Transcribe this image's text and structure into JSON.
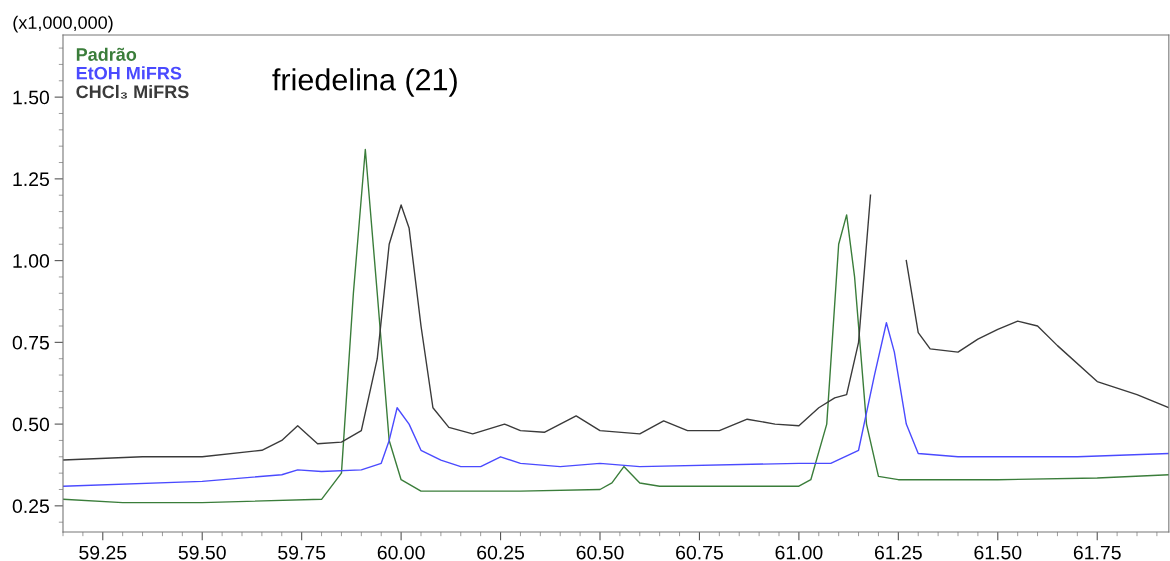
{
  "chart_data": {
    "type": "line",
    "ylabel": "(x1,000,000)",
    "annotations": [
      {
        "text": "friedelina (21)",
        "x": 59.91,
        "y": 1.34
      }
    ],
    "xlim": [
      59.15,
      61.93
    ],
    "xticks": [
      {
        "value": 59.25,
        "label": "59.25"
      },
      {
        "value": 59.5,
        "label": "59.50"
      },
      {
        "value": 59.75,
        "label": "59.75"
      },
      {
        "value": 60.0,
        "label": "60.00"
      },
      {
        "value": 60.25,
        "label": "60.25"
      },
      {
        "value": 60.5,
        "label": "60.50"
      },
      {
        "value": 60.75,
        "label": "60.75"
      },
      {
        "value": 61.0,
        "label": "61.00"
      },
      {
        "value": 61.25,
        "label": "61.25"
      },
      {
        "value": 61.5,
        "label": "61.50"
      },
      {
        "value": 61.75,
        "label": "61.75"
      }
    ],
    "ylim": [
      0.17,
      1.69
    ],
    "yticks": [
      0.25,
      {
        "value": 0.5,
        "label": "0.50"
      },
      0.75,
      {
        "value": 1.0,
        "label": "1.00"
      },
      1.25,
      {
        "value": 1.5,
        "label": "1.50"
      }
    ],
    "legend": "top left",
    "grid": false,
    "marker": "none",
    "line_style": "solid",
    "series": [
      {
        "name": "Padrão",
        "color": "#3a7d3a",
        "x": [
          59.15,
          59.3,
          59.5,
          59.8,
          59.85,
          59.88,
          59.91,
          59.94,
          59.97,
          60.0,
          60.05,
          60.3,
          60.5,
          60.53,
          60.56,
          60.6,
          60.65,
          61.0,
          61.03,
          61.07,
          61.1,
          61.12,
          61.14,
          61.17,
          61.2,
          61.25,
          61.5,
          61.75,
          61.93
        ],
        "values": [
          0.27,
          0.26,
          0.26,
          0.27,
          0.35,
          0.9,
          1.34,
          0.9,
          0.45,
          0.33,
          0.295,
          0.295,
          0.3,
          0.32,
          0.37,
          0.32,
          0.31,
          0.31,
          0.33,
          0.5,
          1.05,
          1.14,
          0.95,
          0.5,
          0.34,
          0.33,
          0.33,
          0.335,
          0.345
        ]
      },
      {
        "name": "EtOH MiFRS",
        "color": "#4a4aff",
        "x": [
          59.15,
          59.5,
          59.7,
          59.74,
          59.8,
          59.9,
          59.95,
          59.97,
          59.99,
          60.02,
          60.05,
          60.1,
          60.15,
          60.2,
          60.25,
          60.3,
          60.4,
          60.5,
          60.6,
          61.0,
          61.08,
          61.15,
          61.19,
          61.22,
          61.24,
          61.27,
          61.3,
          61.4,
          61.7,
          61.93
        ],
        "values": [
          0.31,
          0.325,
          0.345,
          0.36,
          0.355,
          0.36,
          0.38,
          0.45,
          0.55,
          0.5,
          0.42,
          0.39,
          0.37,
          0.37,
          0.4,
          0.38,
          0.37,
          0.38,
          0.37,
          0.38,
          0.38,
          0.42,
          0.65,
          0.81,
          0.72,
          0.5,
          0.41,
          0.4,
          0.4,
          0.41
        ]
      },
      {
        "name": "CHCl₃ MiFRS",
        "color": "#3a3a3a",
        "x": [
          59.15,
          59.35,
          59.5,
          59.65,
          59.7,
          59.74,
          59.79,
          59.85,
          59.9,
          59.94,
          59.97,
          60.0,
          60.02,
          60.05,
          60.08,
          60.12,
          60.18,
          60.26,
          60.3,
          60.36,
          60.44,
          60.5,
          60.6,
          60.66,
          60.72,
          60.8,
          60.87,
          60.94,
          61.0,
          61.05,
          61.09,
          61.12,
          61.15,
          61.18,
          61.2,
          61.24,
          61.27,
          61.3,
          61.33,
          61.4,
          61.45,
          61.5,
          61.55,
          61.6,
          61.65,
          61.75,
          61.85,
          61.93
        ],
        "values": [
          0.39,
          0.4,
          0.4,
          0.42,
          0.45,
          0.495,
          0.44,
          0.445,
          0.48,
          0.7,
          1.05,
          1.17,
          1.1,
          0.8,
          0.55,
          0.49,
          0.47,
          0.5,
          0.48,
          0.475,
          0.525,
          0.48,
          0.47,
          0.51,
          0.48,
          0.48,
          0.515,
          0.5,
          0.495,
          0.55,
          0.58,
          0.59,
          0.75,
          1.2,
          null,
          null,
          1.0,
          0.78,
          0.73,
          0.72,
          0.76,
          0.79,
          0.815,
          0.8,
          0.74,
          0.63,
          0.59,
          0.55
        ]
      }
    ]
  }
}
